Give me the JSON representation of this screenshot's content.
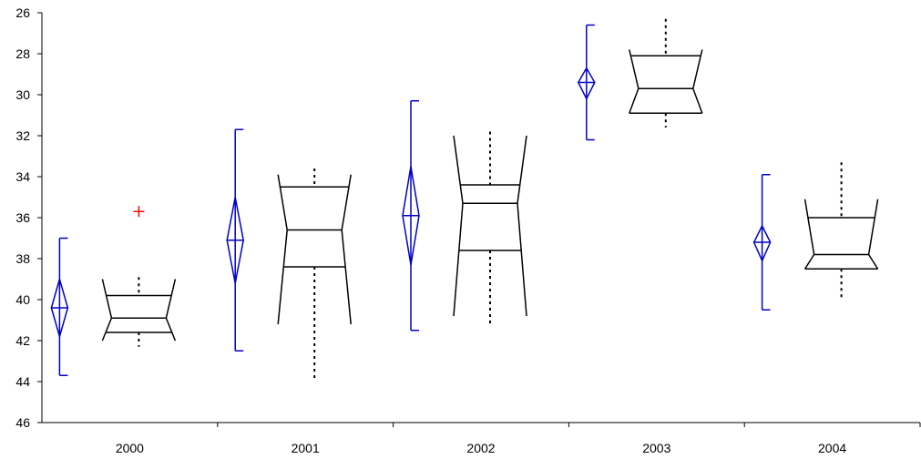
{
  "chart_data": {
    "type": "box",
    "categories": [
      "2000",
      "2001",
      "2002",
      "2003",
      "2004"
    ],
    "y_axis": {
      "range": [
        26,
        46
      ],
      "inverted": true,
      "ticks": [
        26,
        28,
        30,
        32,
        34,
        36,
        38,
        40,
        42,
        44,
        46
      ],
      "tick_labels": [
        "26",
        "28",
        "30",
        "32",
        "34",
        "36",
        "38",
        "40",
        "42",
        "44",
        "46"
      ]
    },
    "grid": false,
    "legend": "none",
    "colors": {
      "mean_ci": "#0000cc",
      "box": "#000000",
      "outlier": "#ff0000",
      "axis": "#000000"
    },
    "mean_ci": [
      {
        "category": "2000",
        "mean": 40.4,
        "ci_low": 39.0,
        "ci_high": 41.8,
        "range_low": 37.0,
        "range_high": 43.7
      },
      {
        "category": "2001",
        "mean": 37.1,
        "ci_low": 35.0,
        "ci_high": 39.2,
        "range_low": 31.7,
        "range_high": 42.5
      },
      {
        "category": "2002",
        "mean": 35.9,
        "ci_low": 33.5,
        "ci_high": 38.3,
        "range_low": 30.3,
        "range_high": 41.5
      },
      {
        "category": "2003",
        "mean": 29.4,
        "ci_low": 28.7,
        "ci_high": 30.2,
        "range_low": 26.6,
        "range_high": 32.2
      },
      {
        "category": "2004",
        "mean": 37.2,
        "ci_low": 36.4,
        "ci_high": 38.1,
        "range_low": 33.9,
        "range_high": 40.5
      }
    ],
    "boxes": [
      {
        "category": "2000",
        "q1": 39.8,
        "median": 40.9,
        "q3": 41.6,
        "notch_low": 40.3,
        "notch_high": 41.5,
        "flare_top": 39.0,
        "flare_bottom": 42.0,
        "whisker_low": 38.9,
        "whisker_high": 42.3,
        "outliers": [
          35.7
        ]
      },
      {
        "category": "2001",
        "q1": 34.5,
        "median": 36.6,
        "q3": 38.4,
        "notch_low": 33.9,
        "notch_high": 41.2,
        "flare_top": 33.9,
        "flare_bottom": 41.2,
        "whisker_low": 33.6,
        "whisker_high": 44.0,
        "outliers": []
      },
      {
        "category": "2002",
        "q1": 34.4,
        "median": 35.3,
        "q3": 37.6,
        "notch_low": 32.0,
        "notch_high": 40.8,
        "flare_top": 32.0,
        "flare_bottom": 40.8,
        "whisker_low": 31.8,
        "whisker_high": 41.3,
        "outliers": []
      },
      {
        "category": "2003",
        "q1": 28.1,
        "median": 29.7,
        "q3": 30.9,
        "notch_low": 27.8,
        "notch_high": 30.9,
        "flare_top": 27.8,
        "flare_bottom": 30.9,
        "whisker_low": 26.3,
        "whisker_high": 31.6,
        "outliers": []
      },
      {
        "category": "2004",
        "q1": 36.0,
        "median": 37.8,
        "q3": 38.5,
        "notch_low": 35.1,
        "notch_high": 38.5,
        "flare_top": 35.1,
        "flare_bottom": 38.5,
        "whisker_low": 33.3,
        "whisker_high": 39.9,
        "outliers": []
      }
    ]
  }
}
